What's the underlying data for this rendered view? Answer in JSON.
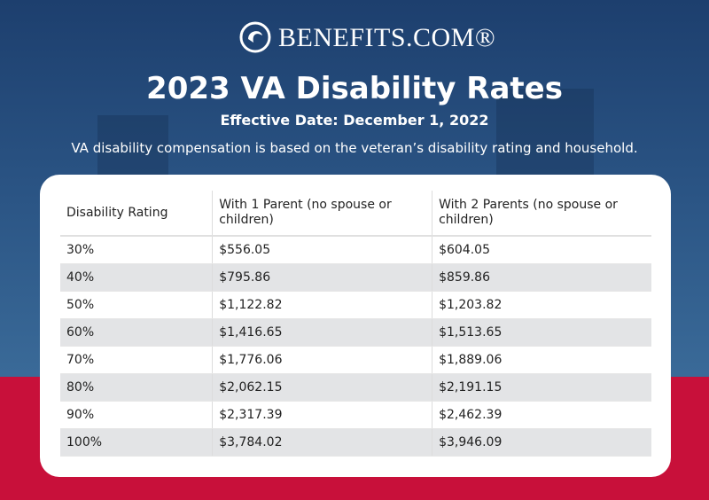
{
  "header": {
    "logo": "BENEFITS.COM®",
    "title": "2023 VA Disability Rates",
    "subtitle": "Effective Date: December 1, 2022",
    "description": "VA disability compensation is based on the veteran’s disability rating and household."
  },
  "table": {
    "columns": [
      "Disability Rating",
      "With 1 Parent (no spouse or children)",
      "With 2 Parents (no spouse or children)"
    ],
    "rows": [
      [
        "30%",
        "$556.05",
        "$604.05"
      ],
      [
        "40%",
        "$795.86",
        "$859.86"
      ],
      [
        "50%",
        "$1,122.82",
        "$1,203.82"
      ],
      [
        "60%",
        "$1,416.65",
        "$1,513.65"
      ],
      [
        "70%",
        "$1,776.06",
        "$1,889.06"
      ],
      [
        "80%",
        "$2,062.15",
        "$2,191.15"
      ],
      [
        "90%",
        "$2,317.39",
        "$2,462.39"
      ],
      [
        "100%",
        "$3,784.02",
        "$3,946.09"
      ]
    ]
  }
}
